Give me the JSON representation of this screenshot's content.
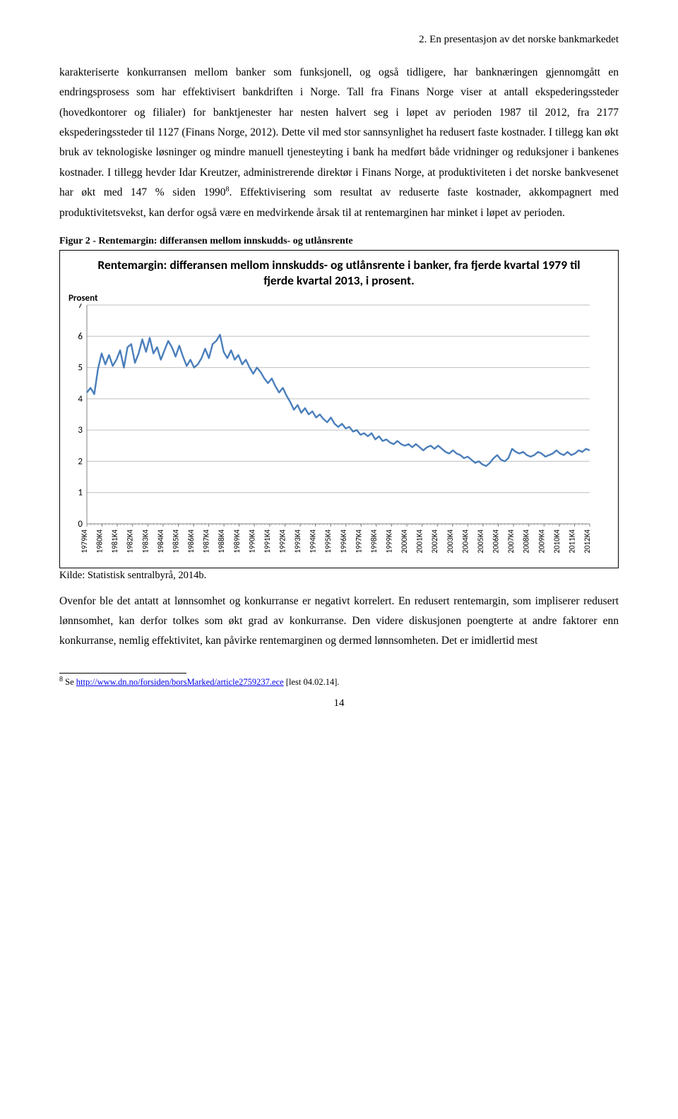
{
  "section_header": "2. En presentasjon av det norske bankmarkedet",
  "paragraph1": "karakteriserte konkurransen mellom banker som funksjonell, og også tidligere, har banknæringen gjennomgått en endringsprosess som har effektivisert bankdriften i Norge. Tall fra Finans Norge viser at antall ekspederingssteder (hovedkontorer og filialer) for banktjenester har nesten halvert seg i løpet av perioden 1987 til 2012, fra 2177 ekspederingssteder til 1127 (Finans Norge, 2012). Dette vil med stor sannsynlighet ha redusert faste kostnader. I tillegg kan økt bruk av teknologiske løsninger og mindre manuell tjenesteyting i bank ha medført både vridninger og reduksjoner i bankenes kostnader. I tillegg hevder Idar Kreutzer, administrerende direktør i Finans Norge, at produktiviteten i det norske bankvesenet har økt med 147 % siden 1990",
  "footnote_marker": "8",
  "paragraph1_cont": ". Effektivisering som resultat av reduserte faste kostnader, akkompagnert med produktivitetsvekst, kan derfor også være en medvirkende årsak til at rentemarginen har minket i løpet av perioden.",
  "figure_caption": "Figur 2 - Rentemargin: differansen mellom innskudds- og utlånsrente",
  "chart": {
    "type": "line",
    "title": "Rentemargin: differansen mellom innskudds- og utlånsrente i banker, fra fjerde kvartal 1979 til fjerde kvartal 2013, i prosent.",
    "y_axis_title": "Prosent",
    "ylim": [
      0,
      7
    ],
    "yticks": [
      0,
      1,
      2,
      3,
      4,
      5,
      6,
      7
    ],
    "xlabels": [
      "1979K4",
      "1980K4",
      "1981K4",
      "1982K4",
      "1983K4",
      "1984K4",
      "1985K4",
      "1986K4",
      "1987K4",
      "1988K4",
      "1989K4",
      "1990K4",
      "1991K4",
      "1992K4",
      "1993K4",
      "1994K4",
      "1995K4",
      "1996K4",
      "1997K4",
      "1998K4",
      "1999K4",
      "2000K4",
      "2001K4",
      "2002K4",
      "2003K4",
      "2004K4",
      "2005K4",
      "2006K4",
      "2007K4",
      "2008K4",
      "2009K4",
      "2010K4",
      "2011K4",
      "2012K4"
    ],
    "series": {
      "points": [
        4.2,
        4.35,
        4.15,
        4.95,
        5.45,
        5.1,
        5.4,
        5.05,
        5.25,
        5.55,
        5.0,
        5.65,
        5.75,
        5.15,
        5.45,
        5.9,
        5.5,
        5.95,
        5.45,
        5.65,
        5.25,
        5.55,
        5.85,
        5.65,
        5.35,
        5.7,
        5.35,
        5.05,
        5.25,
        5.0,
        5.1,
        5.3,
        5.6,
        5.3,
        5.75,
        5.85,
        6.05,
        5.5,
        5.3,
        5.55,
        5.25,
        5.4,
        5.1,
        5.25,
        5.0,
        4.8,
        5.0,
        4.85,
        4.65,
        4.5,
        4.65,
        4.4,
        4.2,
        4.35,
        4.1,
        3.9,
        3.65,
        3.8,
        3.55,
        3.7,
        3.5,
        3.6,
        3.4,
        3.5,
        3.35,
        3.25,
        3.4,
        3.2,
        3.1,
        3.2,
        3.05,
        3.1,
        2.95,
        3.0,
        2.85,
        2.9,
        2.8,
        2.9,
        2.7,
        2.8,
        2.65,
        2.7,
        2.6,
        2.55,
        2.65,
        2.55,
        2.5,
        2.55,
        2.45,
        2.55,
        2.45,
        2.35,
        2.45,
        2.5,
        2.4,
        2.5,
        2.4,
        2.3,
        2.25,
        2.35,
        2.25,
        2.2,
        2.1,
        2.15,
        2.05,
        1.95,
        2.0,
        1.9,
        1.85,
        1.95,
        2.1,
        2.2,
        2.05,
        2.0,
        2.1,
        2.4,
        2.3,
        2.25,
        2.3,
        2.2,
        2.15,
        2.2,
        2.3,
        2.25,
        2.15,
        2.2,
        2.25,
        2.35,
        2.25,
        2.2,
        2.3,
        2.2,
        2.25,
        2.35,
        2.3,
        2.4,
        2.35
      ],
      "line_color": "#4a7ebb",
      "line_width": 2.4,
      "background_color": "#ffffff",
      "gridline_color": "#bfbfbf",
      "axis_color": "#808080",
      "tick_fontsize": 13,
      "tick_font": "Calibri"
    }
  },
  "source_line": "Kilde: Statistisk sentralbyrå, 2014b.",
  "paragraph2": "Ovenfor ble det antatt at lønnsomhet og konkurranse er negativt korrelert. En redusert rentemargin, som impliserer redusert lønnsomhet, kan derfor tolkes som økt grad av konkurranse. Den videre diskusjonen poengterte at andre faktorer enn konkurranse, nemlig effektivitet, kan påvirke rentemarginen og dermed lønnsomheten. Det er imidlertid mest",
  "footnote": {
    "number": "8",
    "prefix": " Se ",
    "link_text": "http://www.dn.no/forsiden/borsMarked/article2759237.ece",
    "suffix": " [lest 04.02.14]."
  },
  "page_number": "14"
}
